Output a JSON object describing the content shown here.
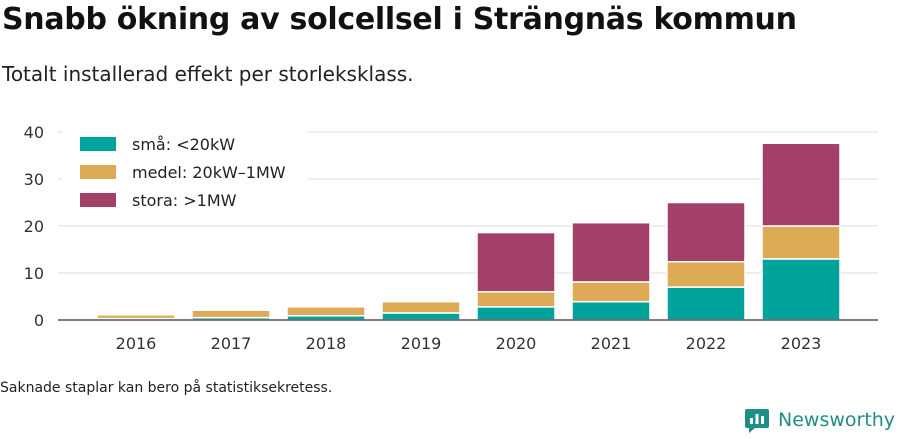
{
  "title": "Snabb ökning av solcellsel i Strängnäs kommun",
  "subtitle": "Totalt installerad effekt per storleksklass.",
  "note": "Saknade staplar kan bero på statistiksekretess.",
  "brand": {
    "name": "Newsworthy",
    "icon": "newsworthy-logo-icon",
    "color": "#1f8f86"
  },
  "chart_data": {
    "type": "bar",
    "stacked": true,
    "categories": [
      "2016",
      "2017",
      "2018",
      "2019",
      "2020",
      "2021",
      "2022",
      "2023"
    ],
    "series": [
      {
        "name": "små: <20kW",
        "color": "#00a39b",
        "values": [
          0.3,
          0.5,
          0.9,
          1.5,
          2.8,
          3.9,
          7.0,
          13.0
        ]
      },
      {
        "name": "medel: 20kW–1MW",
        "color": "#ddab55",
        "values": [
          0.8,
          1.6,
          1.9,
          2.4,
          3.2,
          4.2,
          5.4,
          7.0
        ]
      },
      {
        "name": "stora: >1MW",
        "color": "#a3406a",
        "values": [
          0,
          0,
          0,
          0,
          12.6,
          12.6,
          12.6,
          17.6
        ]
      }
    ],
    "yticks": [
      0,
      10,
      20,
      30,
      40
    ],
    "ylim": [
      0,
      40
    ],
    "grid": true,
    "legend_position": "top-left"
  }
}
